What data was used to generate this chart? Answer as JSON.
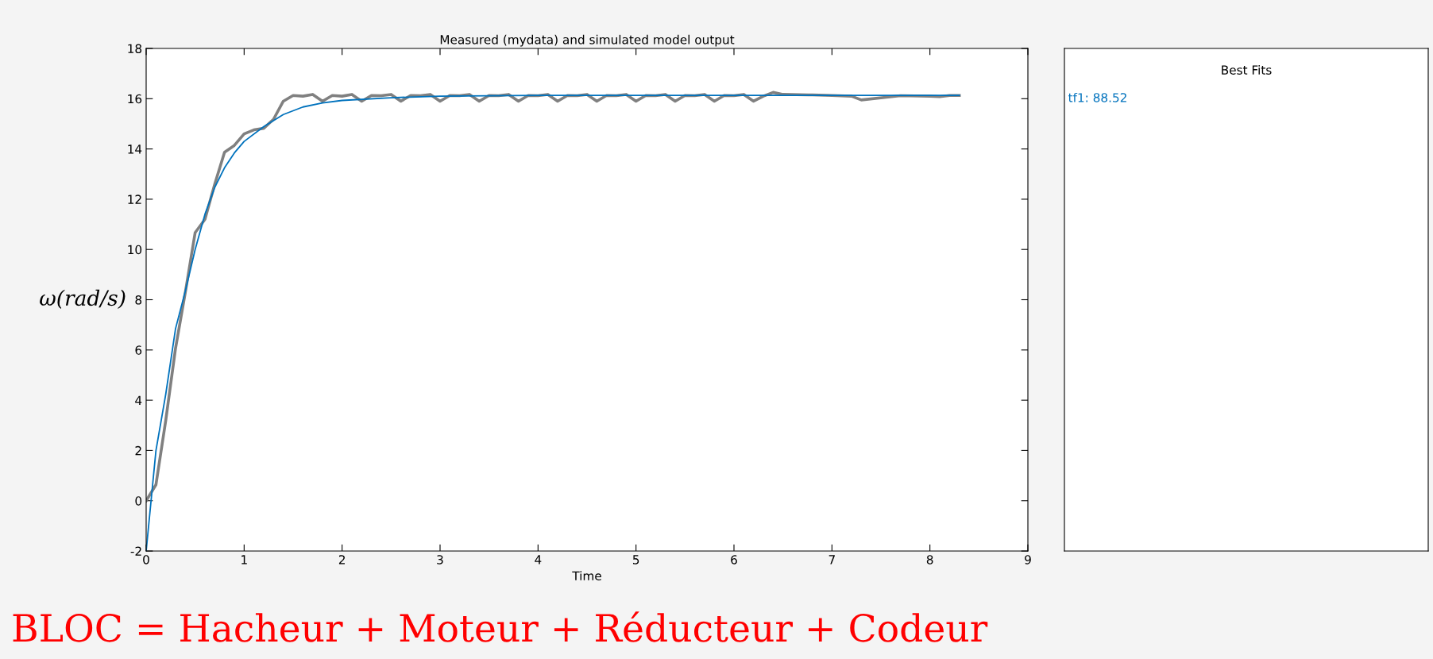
{
  "chart_data": {
    "type": "line",
    "title": "Measured (mydata) and simulated model output",
    "xlabel": "Time",
    "ylabel": "ω(rad/s)",
    "legend_title": "Best Fits",
    "legend": "right",
    "grid": false,
    "xlim": [
      0,
      9
    ],
    "xticks": [
      0,
      1,
      2,
      3,
      4,
      5,
      6,
      7,
      8,
      9
    ],
    "ylim": [
      -2,
      18
    ],
    "yticks": [
      -2,
      0,
      2,
      4,
      6,
      8,
      10,
      12,
      14,
      16,
      18
    ],
    "series": [
      {
        "color": "#808080",
        "x": [
          0,
          0.1,
          0.2,
          0.3,
          0.4,
          0.5,
          0.6,
          0.7,
          0.8,
          0.9,
          1.0,
          1.1,
          1.2,
          1.3,
          1.4,
          1.5,
          1.6,
          1.7,
          1.8,
          1.9,
          2.0,
          2.1,
          2.2,
          2.3,
          2.4,
          2.5,
          2.6,
          2.7,
          2.8,
          2.9,
          3.0,
          3.1,
          3.2,
          3.3,
          3.4,
          3.5,
          3.6,
          3.7,
          3.8,
          3.9,
          4.0,
          4.1,
          4.2,
          4.3,
          4.4,
          4.5,
          4.6,
          4.7,
          4.8,
          4.9,
          5.0,
          5.1,
          5.2,
          5.3,
          5.4,
          5.5,
          5.6,
          5.7,
          5.8,
          5.9,
          6.0,
          6.1,
          6.2,
          6.3,
          6.4,
          6.5,
          6.8,
          7.0,
          7.2,
          7.3,
          7.7,
          8.0,
          8.1,
          8.2,
          8.3
        ],
        "values": [
          0,
          0.64,
          3.2,
          6.07,
          8.3,
          10.67,
          11.2,
          12.6,
          13.87,
          14.14,
          14.6,
          14.76,
          14.82,
          15.18,
          15.9,
          16.13,
          16.1,
          16.17,
          15.9,
          16.13,
          16.1,
          16.17,
          15.9,
          16.13,
          16.12,
          16.17,
          15.9,
          16.13,
          16.12,
          16.17,
          15.9,
          16.13,
          16.12,
          16.17,
          15.9,
          16.13,
          16.12,
          16.17,
          15.9,
          16.13,
          16.12,
          16.17,
          15.9,
          16.13,
          16.12,
          16.17,
          15.9,
          16.13,
          16.12,
          16.17,
          15.9,
          16.13,
          16.12,
          16.17,
          15.9,
          16.13,
          16.12,
          16.17,
          15.9,
          16.13,
          16.12,
          16.17,
          15.9,
          16.1,
          16.25,
          16.17,
          16.15,
          16.13,
          16.1,
          15.95,
          16.12,
          16.1,
          16.08,
          16.13,
          16.13
        ]
      },
      {
        "name": "tf1: 88.52",
        "color": "#0072bd",
        "x": [
          0,
          0.1,
          0.2,
          0.3,
          0.4,
          0.5,
          0.6,
          0.7,
          0.8,
          0.9,
          1.0,
          1.2,
          1.4,
          1.6,
          1.8,
          2.0,
          2.5,
          3.0,
          4.0,
          8.3
        ],
        "values": [
          -2,
          2.0,
          4.24,
          6.85,
          8.35,
          10.0,
          11.4,
          12.47,
          13.25,
          13.84,
          14.3,
          14.89,
          15.37,
          15.67,
          15.83,
          15.93,
          16.04,
          16.1,
          16.13,
          16.13
        ]
      }
    ],
    "annotations": [
      "BLOC = Hacheur + Moteur + Réducteur + Codeur"
    ]
  }
}
